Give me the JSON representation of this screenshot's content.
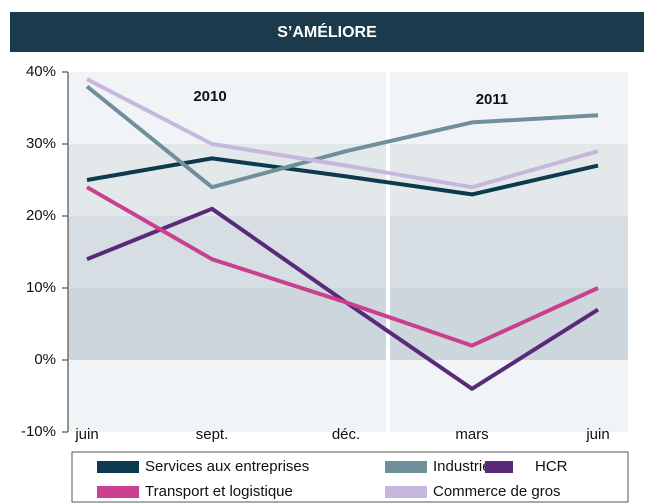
{
  "chart_data": {
    "type": "line",
    "title": "S’AMÉLIORE",
    "categories": [
      "juin",
      "sept.",
      "déc.",
      "mars",
      "juin"
    ],
    "annotations": [
      "2010",
      "2011"
    ],
    "series": [
      {
        "name": "Services aux entreprises",
        "color": "#0d3a4f",
        "values": [
          25,
          28,
          25.5,
          23,
          27
        ]
      },
      {
        "name": "Industrie",
        "color": "#6f8f9b",
        "values": [
          38,
          24,
          29,
          33,
          34
        ]
      },
      {
        "name": "HCR",
        "color": "#5a2a7a",
        "values": [
          14,
          21,
          8,
          -4,
          7
        ]
      },
      {
        "name": "Transport et logistique",
        "color": "#c9408f",
        "values": [
          24,
          14,
          8,
          2,
          10
        ]
      },
      {
        "name": "Commerce de gros",
        "color": "#c5b8dc",
        "values": [
          39,
          30,
          27,
          24,
          29
        ]
      }
    ],
    "ylim": [
      -10,
      40
    ],
    "yticks": [
      {
        "value": -10,
        "label": "-10%"
      },
      {
        "value": 0,
        "label": "0%"
      },
      {
        "value": 10,
        "label": "10%"
      },
      {
        "value": 20,
        "label": "20%"
      },
      {
        "value": 30,
        "label": "30%"
      },
      {
        "value": 40,
        "label": "40%"
      }
    ]
  }
}
